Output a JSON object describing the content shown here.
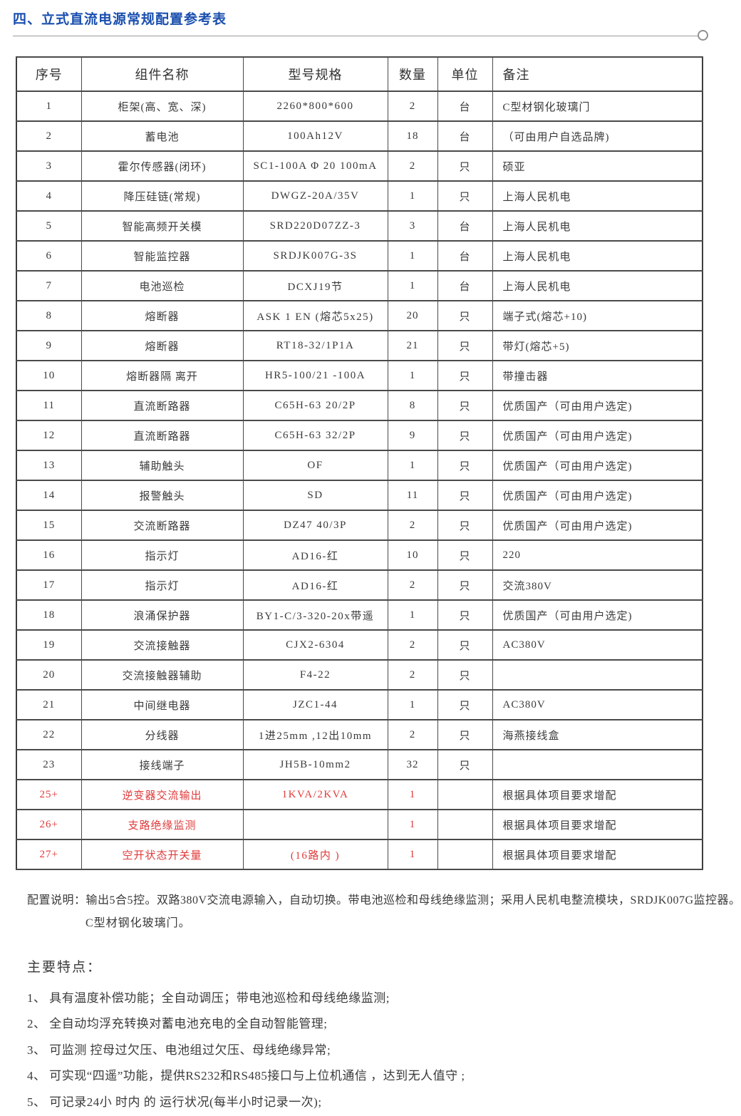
{
  "colors": {
    "accent": "#1a4fae",
    "red": "#e03a3a"
  },
  "header": {
    "title": "四、立式直流电源常规配置参考表"
  },
  "table": {
    "headers": [
      "序号",
      "组件名称",
      "型号规格",
      "数量",
      "单位",
      "备注"
    ],
    "rows": [
      {
        "no": "1",
        "name": "柜架(高、宽、深)",
        "model": "2260*800*600",
        "qty": "2",
        "unit": "台",
        "note": "C型材钢化玻璃门",
        "red": false
      },
      {
        "no": "2",
        "name": "蓄电池",
        "model": "100Ah12V",
        "qty": "18",
        "unit": "台",
        "note": "（可由用户自选品牌)",
        "red": false
      },
      {
        "no": "3",
        "name": "霍尔传感器(闭环)",
        "model": "SC1-100A Φ 20 100mA",
        "qty": "2",
        "unit": "只",
        "note": "硕亚",
        "red": false
      },
      {
        "no": "4",
        "name": "降压硅链(常规)",
        "model": "DWGZ-20A/35V",
        "qty": "1",
        "unit": "只",
        "note": "上海人民机电",
        "red": false
      },
      {
        "no": "5",
        "name": "智能高频开关模",
        "model": "SRD220D07ZZ-3",
        "qty": "3",
        "unit": "台",
        "note": "上海人民机电",
        "red": false
      },
      {
        "no": "6",
        "name": "智能监控器",
        "model": "SRDJK007G-3S",
        "qty": "1",
        "unit": "台",
        "note": "上海人民机电",
        "red": false
      },
      {
        "no": "7",
        "name": "电池巡检",
        "model": "DCXJ19节",
        "qty": "1",
        "unit": "台",
        "note": "上海人民机电",
        "red": false
      },
      {
        "no": "8",
        "name": "熔断器",
        "model": "ASK 1 EN (熔芯5x25)",
        "qty": "20",
        "unit": "只",
        "note": "端子式(熔芯+10)",
        "red": false
      },
      {
        "no": "9",
        "name": "熔断器",
        "model": "RT18-32/1P1A",
        "qty": "21",
        "unit": "只",
        "note": "带灯(熔芯+5)",
        "red": false
      },
      {
        "no": "10",
        "name": "熔断器隔 离开",
        "model": "HR5-100/21 -100A",
        "qty": "1",
        "unit": "只",
        "note": "带撞击器",
        "red": false
      },
      {
        "no": "11",
        "name": "直流断路器",
        "model": "C65H-63 20/2P",
        "qty": "8",
        "unit": "只",
        "note": "优质国产（可由用户选定)",
        "red": false
      },
      {
        "no": "12",
        "name": "直流断路器",
        "model": "C65H-63 32/2P",
        "qty": "9",
        "unit": "只",
        "note": "优质国产（可由用户选定)",
        "red": false
      },
      {
        "no": "13",
        "name": "辅助触头",
        "model": "OF",
        "qty": "1",
        "unit": "只",
        "note": "优质国产（可由用户选定)",
        "red": false
      },
      {
        "no": "14",
        "name": "报警触头",
        "model": "SD",
        "qty": "11",
        "unit": "只",
        "note": "优质国产（可由用户选定)",
        "red": false
      },
      {
        "no": "15",
        "name": "交流断路器",
        "model": "DZ47 40/3P",
        "qty": "2",
        "unit": "只",
        "note": "优质国产（可由用户选定)",
        "red": false
      },
      {
        "no": "16",
        "name": "指示灯",
        "model": "AD16-红",
        "qty": "10",
        "unit": "只",
        "note": "220",
        "red": false
      },
      {
        "no": "17",
        "name": "指示灯",
        "model": "AD16-红",
        "qty": "2",
        "unit": "只",
        "note": "交流380V",
        "red": false
      },
      {
        "no": "18",
        "name": "浪涌保护器",
        "model": "BY1-C/3-320-20x带遥",
        "qty": "1",
        "unit": "只",
        "note": "优质国产（可由用户选定)",
        "red": false
      },
      {
        "no": "19",
        "name": "交流接触器",
        "model": "CJX2-6304",
        "qty": "2",
        "unit": "只",
        "note": "AC380V",
        "red": false
      },
      {
        "no": "20",
        "name": "交流接触器辅助",
        "model": "F4-22",
        "qty": "2",
        "unit": "只",
        "note": "",
        "red": false
      },
      {
        "no": "21",
        "name": "中间继电器",
        "model": "JZC1-44",
        "qty": "1",
        "unit": "只",
        "note": "AC380V",
        "red": false
      },
      {
        "no": "22",
        "name": "分线器",
        "model": "1进25mm ,12出10mm",
        "qty": "2",
        "unit": "只",
        "note": "海燕接线盒",
        "red": false
      },
      {
        "no": "23",
        "name": "接线端子",
        "model": "JH5B-10mm2",
        "qty": "32",
        "unit": "只",
        "note": "",
        "red": false
      },
      {
        "no": "25+",
        "name": "逆变器交流输出",
        "model": "1KVA/2KVA",
        "qty": "1",
        "unit": "",
        "note": "根据具体项目要求增配",
        "red": true
      },
      {
        "no": "26+",
        "name": "支路绝缘监测",
        "model": "",
        "qty": "1",
        "unit": "",
        "note": "根据具体项目要求增配",
        "red": true
      },
      {
        "no": "27+",
        "name": "空开状态开关量",
        "model": "(16路内 )",
        "qty": "1",
        "unit": "",
        "note": "根据具体项目要求增配",
        "red": true
      }
    ]
  },
  "notes": {
    "line1": "配置说明：输出5合5控。双路380V交流电源输入，自动切换。带电池巡检和母线绝缘监测；采用人民机电整流模块，SRDJK007G监控器。",
    "line2": "C型材钢化玻璃门。"
  },
  "features": {
    "title": "主要特点：",
    "items": [
      "1、 具有温度补偿功能；全自动调压；带电池巡检和母线绝缘监测;",
      "2、 全自动均浮充转换对蓄电池充电的全自动智能管理;",
      "3、 可监测 控母过欠压、电池组过欠压、母线绝缘异常;",
      "4、 可实现“四遥”功能，提供RS232和RS485接口与上位机通信 ，达到无人值守 ;",
      "5、 可记录24小 时内 的 运行状况(每半小时记录一次);"
    ]
  }
}
